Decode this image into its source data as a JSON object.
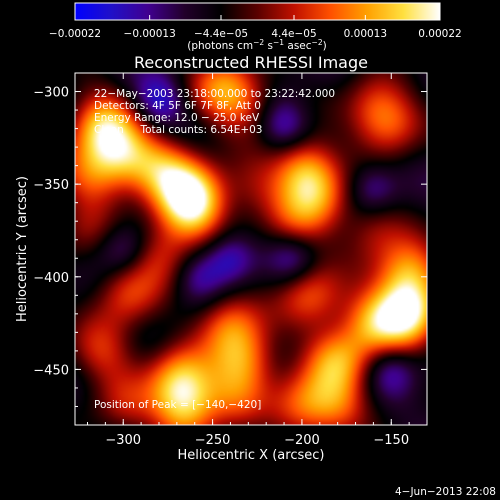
{
  "chart_data": {
    "type": "heatmap",
    "title": "Reconstructed RHESSI Image",
    "xlabel": "Heliocentric X (arcsec)",
    "ylabel": "Heliocentric Y (arcsec)",
    "xlim": [
      -327,
      -130
    ],
    "ylim": [
      -480,
      -290
    ],
    "x_ticks": [
      -300,
      -250,
      -200,
      -150
    ],
    "x_tick_labels": [
      "−300",
      "−250",
      "−200",
      "−150"
    ],
    "y_ticks": [
      -300,
      -350,
      -400,
      -450
    ],
    "y_tick_labels": [
      "−300",
      "−350",
      "−400",
      "−450"
    ],
    "colorbar": {
      "range": [
        -0.00022,
        0.00022
      ],
      "ticks": [
        -0.00022,
        -0.00013,
        -4.4e-05,
        4.4e-05,
        0.00013,
        0.00022
      ],
      "tick_labels": [
        "−0.00022",
        "−0.00013",
        "−4.4e−05",
        "4.4e−05",
        "0.00013",
        "0.00022"
      ],
      "units_prefix": "(photons cm",
      "units_exp1": "−2",
      "units_mid": " s",
      "units_exp2": "−1",
      "units_mid2": " asec",
      "units_exp3": "−2",
      "units_suffix": ")"
    },
    "annotations": [
      "22−May−2003 23:18:00.000 to 23:22:42.000",
      "Detectors: 4F 5F 6F 7F 8F, Att 0",
      "Energy Range: 12.0 − 25.0 keV",
      "Clean     Total counts: 6.54E+03"
    ],
    "peak_label": "Position of Peak = [−140,−420]",
    "peak": {
      "x": -140,
      "y": -420
    },
    "blobs": [
      {
        "x": -312,
        "y": -318,
        "a": 1.0
      },
      {
        "x": -300,
        "y": -335,
        "a": 0.8
      },
      {
        "x": -318,
        "y": -345,
        "a": 0.6
      },
      {
        "x": -278,
        "y": -342,
        "a": 0.75
      },
      {
        "x": -262,
        "y": -355,
        "a": 0.9
      },
      {
        "x": -262,
        "y": -365,
        "a": 0.7
      },
      {
        "x": -245,
        "y": -298,
        "a": 0.7
      },
      {
        "x": -232,
        "y": -305,
        "a": 0.5
      },
      {
        "x": -198,
        "y": -342,
        "a": 0.9
      },
      {
        "x": -190,
        "y": -358,
        "a": 0.6
      },
      {
        "x": -228,
        "y": -352,
        "a": 0.4
      },
      {
        "x": -160,
        "y": -308,
        "a": 0.5
      },
      {
        "x": -150,
        "y": -318,
        "a": 0.6
      },
      {
        "x": -160,
        "y": -375,
        "a": 0.45
      },
      {
        "x": -140,
        "y": -398,
        "a": 0.9
      },
      {
        "x": -140,
        "y": -420,
        "a": 1.15
      },
      {
        "x": -160,
        "y": -425,
        "a": 0.8
      },
      {
        "x": -180,
        "y": -445,
        "a": 0.85
      },
      {
        "x": -195,
        "y": -410,
        "a": 0.7
      },
      {
        "x": -200,
        "y": -470,
        "a": 0.7
      },
      {
        "x": -180,
        "y": -470,
        "a": 0.6
      },
      {
        "x": -240,
        "y": -425,
        "a": 0.7
      },
      {
        "x": -232,
        "y": -445,
        "a": 0.75
      },
      {
        "x": -238,
        "y": -465,
        "a": 0.5
      },
      {
        "x": -268,
        "y": -455,
        "a": 0.9
      },
      {
        "x": -265,
        "y": -472,
        "a": 0.85
      },
      {
        "x": -298,
        "y": -410,
        "a": 0.6
      },
      {
        "x": -312,
        "y": -440,
        "a": 0.55
      },
      {
        "x": -300,
        "y": -470,
        "a": 0.45
      },
      {
        "x": -278,
        "y": -388,
        "a": 0.55
      },
      {
        "x": -205,
        "y": -372,
        "a": 0.45
      },
      {
        "x": -322,
        "y": -375,
        "a": 0.35
      }
    ],
    "dips": [
      {
        "x": -280,
        "y": -305,
        "a": 0.5
      },
      {
        "x": -210,
        "y": -318,
        "a": 0.45
      },
      {
        "x": -240,
        "y": -390,
        "a": 0.5
      },
      {
        "x": -205,
        "y": -390,
        "a": 0.4
      },
      {
        "x": -160,
        "y": -352,
        "a": 0.4
      },
      {
        "x": -300,
        "y": -385,
        "a": 0.4
      },
      {
        "x": -150,
        "y": -450,
        "a": 0.35
      },
      {
        "x": -258,
        "y": -400,
        "a": 0.35
      }
    ]
  },
  "footer": {
    "date": "4−Jun−2013 22:08"
  },
  "colors": {
    "colormap": [
      "#0000ff",
      "#2010c8",
      "#400090",
      "#22002a",
      "#000000",
      "#5a0000",
      "#c01000",
      "#ff5000",
      "#ffa000",
      "#ffe040",
      "#ffffff"
    ]
  }
}
